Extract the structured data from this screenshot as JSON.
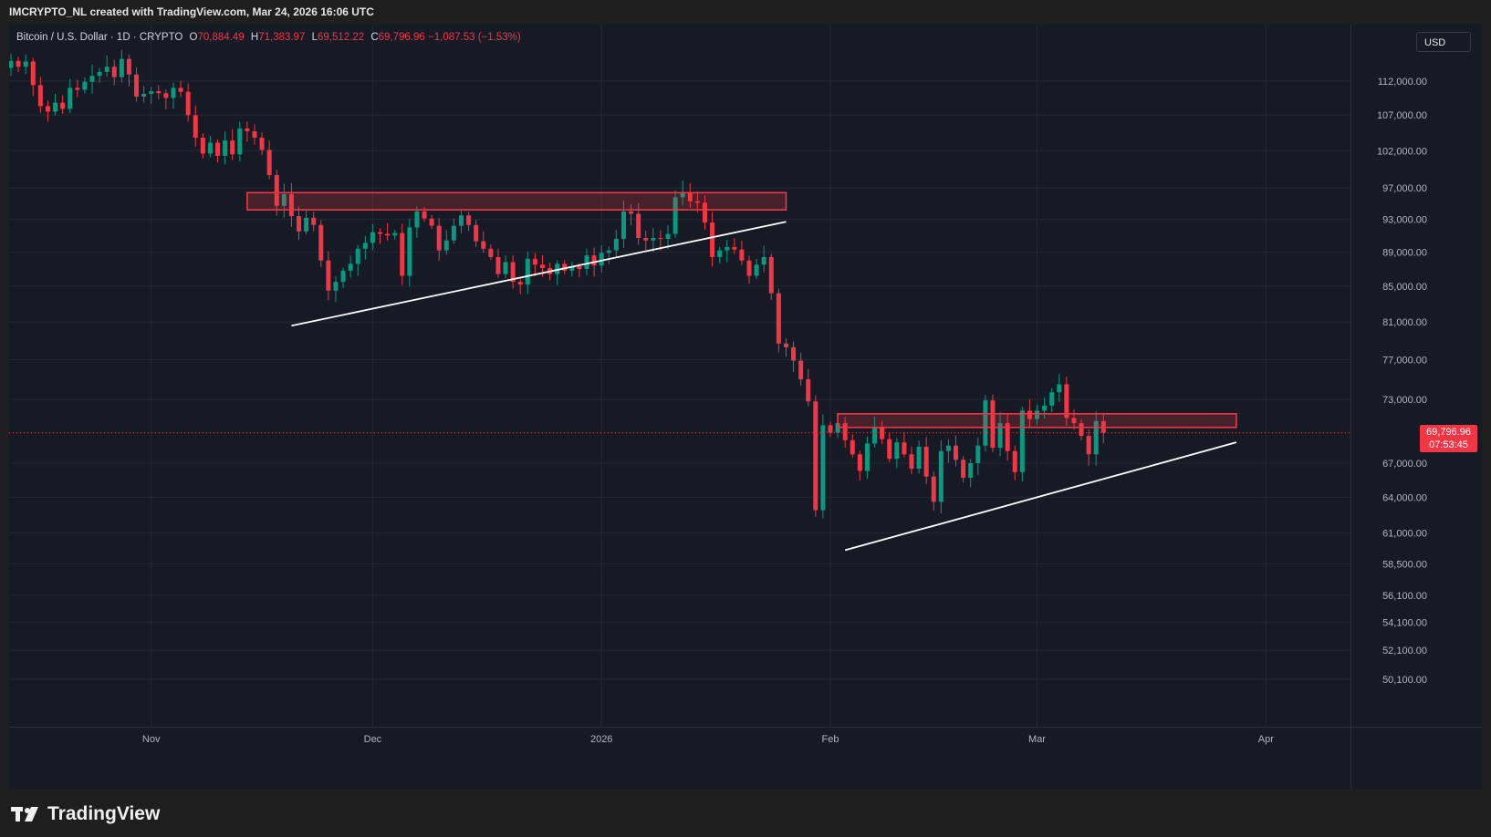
{
  "header": {
    "caption": "IMCRYPTO_NL created with TradingView.com, Mar 24, 2026 16:06 UTC"
  },
  "legend": {
    "symbol": "Bitcoin / U.S. Dollar · 1D · CRYPTO",
    "open_label": "O",
    "open": "70,884.49",
    "high_label": "H",
    "high": "71,383.97",
    "low_label": "L",
    "low": "69,512.22",
    "close_label": "C",
    "close": "69,796.96",
    "change": "−1,087.53 (−1.53%)"
  },
  "currency_button": "USD",
  "last_price": {
    "price": "69,796.96",
    "countdown": "07:53:45"
  },
  "brand": "TradingView",
  "colors": {
    "up": "#089981",
    "down": "#f23645",
    "background": "#161a25",
    "grid": "#242833",
    "zone": "#f23645",
    "trendline": "#ffffff"
  },
  "chart_data": {
    "type": "candlestick",
    "symbol": "BTCUSD",
    "interval": "1D",
    "y_axis_ticks": [
      "112,000.00",
      "107,000.00",
      "102,000.00",
      "97,000.00",
      "93,000.00",
      "89,000.00",
      "85,000.00",
      "81,000.00",
      "77,000.00",
      "73,000.00",
      "67,000.00",
      "64,000.00",
      "61,000.00",
      "58,500.00",
      "56,100.00",
      "54,100.00",
      "52,100.00",
      "50,100.00"
    ],
    "y_axis_values": [
      112000,
      107000,
      102000,
      97000,
      93000,
      89000,
      85000,
      81000,
      77000,
      73000,
      67000,
      64000,
      61000,
      58500,
      56100,
      54100,
      52100,
      50100
    ],
    "y_scale": "log",
    "x_axis_labels": [
      "Nov",
      "Dec",
      "2026",
      "Feb",
      "Mar",
      "Apr"
    ],
    "x_axis_dates": [
      "2025-11-01",
      "2025-12-01",
      "2026-01-01",
      "2026-02-01",
      "2026-03-01",
      "2026-04-01"
    ],
    "start_date": "2025-10-13",
    "close_prices": [
      115100,
      114200,
      115000,
      111400,
      108300,
      107500,
      108800,
      107900,
      111000,
      110700,
      111900,
      112800,
      113400,
      114200,
      112600,
      115400,
      113000,
      109700,
      110100,
      110500,
      110200,
      109500,
      111000,
      110400,
      107000,
      103800,
      101600,
      103100,
      101300,
      103400,
      101500,
      105100,
      104700,
      103800,
      102100,
      98700,
      94700,
      96200,
      93400,
      91500,
      93200,
      92300,
      88000,
      84500,
      85500,
      86800,
      87600,
      89400,
      90100,
      91400,
      91200,
      91000,
      91300,
      86200,
      92000,
      94000,
      93100,
      92200,
      89200,
      90400,
      92200,
      93500,
      92300,
      90300,
      89400,
      88400,
      86400,
      87800,
      85500,
      85200,
      88200,
      87500,
      87100,
      86400,
      87600,
      86800,
      87300,
      87000,
      88600,
      87400,
      88900,
      89200,
      90600,
      94000,
      93700,
      90700,
      90400,
      90700,
      90600,
      91200,
      95800,
      96500,
      95300,
      95100,
      92600,
      88400,
      89200,
      89600,
      89300,
      88000,
      86200,
      87500,
      88400,
      84200,
      78700,
      78300,
      76900,
      75000,
      72800,
      62900,
      70500,
      69800,
      70700,
      69100,
      67800,
      66300,
      68800,
      70300,
      69200,
      67400,
      68900,
      67800,
      66500,
      68500,
      65800,
      63600,
      68100,
      68600,
      67300,
      65700,
      67000,
      68600,
      72900,
      68400,
      70700,
      68100,
      66200,
      71900,
      71100,
      71900,
      72400,
      73700,
      74500,
      71200,
      70700,
      69500,
      67800,
      70900,
      69800
    ]
  }
}
